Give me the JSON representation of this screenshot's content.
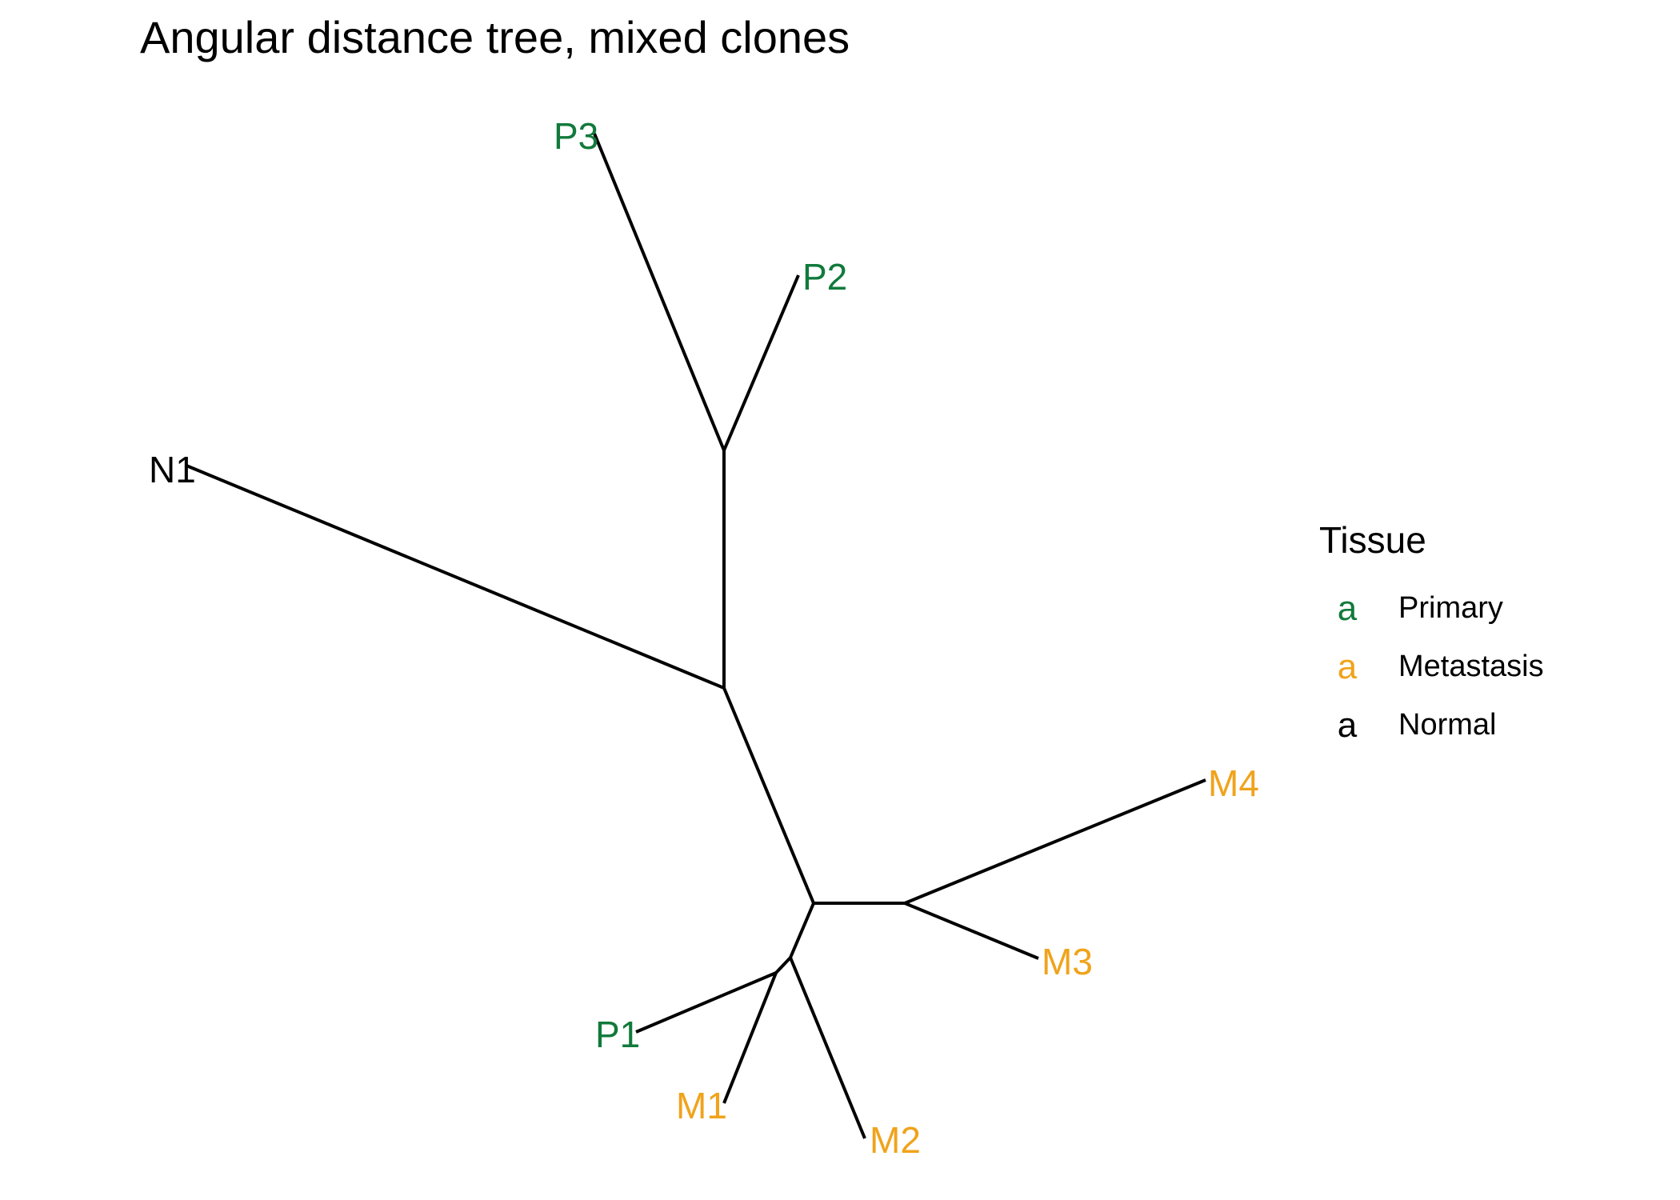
{
  "title": "Angular distance tree, mixed clones",
  "colors": {
    "Primary": "#117A3B",
    "Metastasis": "#F0A31B",
    "Normal": "#000000",
    "edge": "#000000"
  },
  "tree": {
    "tips": [
      {
        "label": "P3",
        "tissue": "Primary"
      },
      {
        "label": "P2",
        "tissue": "Primary"
      },
      {
        "label": "N1",
        "tissue": "Normal"
      },
      {
        "label": "M4",
        "tissue": "Metastasis"
      },
      {
        "label": "M3",
        "tissue": "Metastasis"
      },
      {
        "label": "P1",
        "tissue": "Primary"
      },
      {
        "label": "M1",
        "tissue": "Metastasis"
      },
      {
        "label": "M2",
        "tissue": "Metastasis"
      }
    ],
    "newick": "(N1,(P3,P2),((M4,M3),((P1,M1),M2)));"
  },
  "legend": {
    "title": "Tissue",
    "key_glyph": "a",
    "entries": [
      {
        "label": "Primary",
        "tissue": "Primary"
      },
      {
        "label": "Metastasis",
        "tissue": "Metastasis"
      },
      {
        "label": "Normal",
        "tissue": "Normal"
      }
    ]
  }
}
